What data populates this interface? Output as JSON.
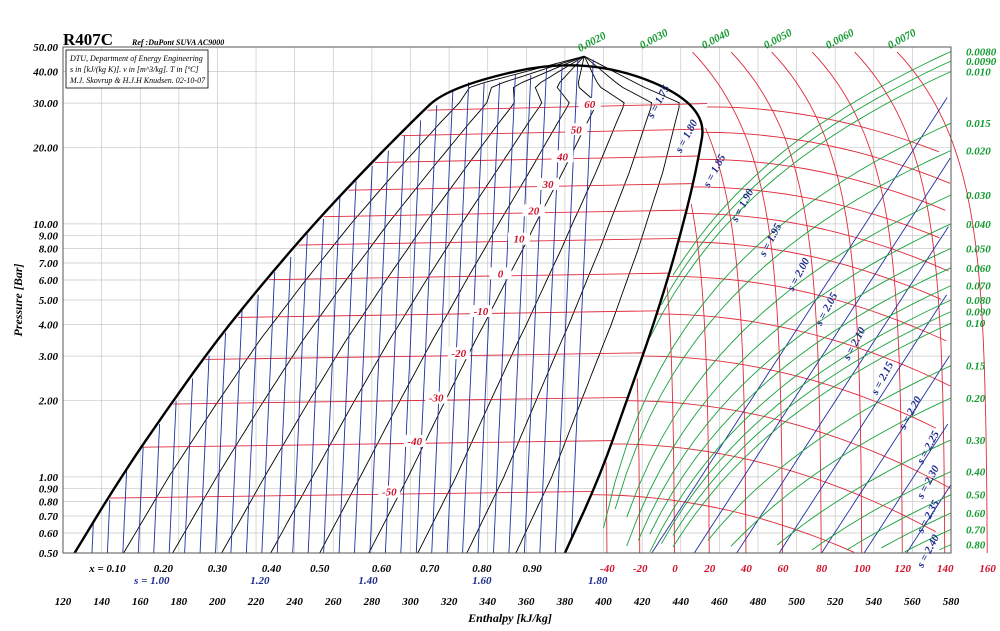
{
  "chart_data": {
    "type": "line",
    "title": "R407C",
    "subtitle": "Ref :DuPont SUVA AC9000",
    "info_lines": [
      "DTU, Department of Energy Engineering",
      "s in [kJ/(kg K)]. v in [m^3/kg]. T in [ºC]",
      "M.J. Skovrup & H.J.H Knudsen. 02-10-07"
    ],
    "xlabel": "Enthalpy [kJ/kg]",
    "ylabel": "Pressure [Bar]",
    "xlim": [
      120,
      580
    ],
    "ylim": [
      0.5,
      50
    ],
    "y_scale": "log",
    "grid": true,
    "x_ticks": [
      120,
      140,
      160,
      180,
      200,
      220,
      240,
      260,
      280,
      300,
      320,
      340,
      360,
      380,
      400,
      420,
      440,
      460,
      480,
      500,
      520,
      540,
      560,
      580
    ],
    "x_tick_labels": [
      "120",
      "140",
      "160",
      "180",
      "200",
      "220",
      "240",
      "260",
      "280",
      "300",
      "320",
      "340",
      "360",
      "380",
      "400",
      "420",
      "440",
      "460",
      "480",
      "500",
      "520",
      "540",
      "560",
      "580"
    ],
    "y_ticks": [
      0.5,
      0.6,
      0.7,
      0.8,
      0.9,
      1.0,
      2.0,
      3.0,
      4.0,
      5.0,
      6.0,
      7.0,
      8.0,
      9.0,
      10.0,
      20.0,
      30.0,
      40.0,
      50.0
    ],
    "y_tick_labels": [
      "0.50",
      "0.60",
      "0.70",
      "0.80",
      "0.90",
      "1.00",
      "2.00",
      "3.00",
      "4.00",
      "5.00",
      "6.00",
      "7.00",
      "8.00",
      "9.00",
      "10.00",
      "20.00",
      "30.00",
      "40.00",
      "50.00"
    ],
    "saturation_liquid": {
      "h": [
        126,
        150,
        175,
        200,
        225,
        250,
        275,
        300,
        320
      ],
      "p": [
        0.5,
        1.0,
        1.9,
        3.5,
        6.0,
        10.0,
        16.0,
        25.0,
        35.0
      ]
    },
    "critical_point": {
      "h": 390,
      "p": 46
    },
    "saturation_vapor": {
      "h": [
        380,
        398,
        412,
        426,
        438,
        448,
        454
      ],
      "p": [
        0.5,
        1.0,
        2.0,
        4.0,
        8.0,
        16.0,
        30.0
      ]
    },
    "quality_labels": [
      "x = 0.10",
      "0.20",
      "0.30",
      "0.40",
      "0.50",
      "0.60",
      "0.70",
      "0.80",
      "0.90"
    ],
    "quality_label_h": [
      143,
      172,
      200,
      228,
      253,
      285,
      310,
      337,
      363
    ],
    "entropy_bottom_labels": [
      "s = 1.00",
      "1.20",
      "1.40",
      "1.60",
      "1.80"
    ],
    "entropy_bottom_h": [
      166,
      222,
      278,
      337,
      397
    ],
    "temperature_bottom_labels": [
      "-40",
      "-20",
      "0",
      "20",
      "40",
      "60",
      "80",
      "100",
      "120",
      "140",
      "160"
    ],
    "temperature_bottom_h": [
      402,
      419,
      437,
      455,
      474,
      493,
      513,
      534,
      555,
      577,
      599
    ],
    "isotherms_inside": [
      {
        "label": "60",
        "p": 29.0
      },
      {
        "label": "50",
        "p": 23.0
      },
      {
        "label": "40",
        "p": 18.0
      },
      {
        "label": "30",
        "p": 14.0
      },
      {
        "label": "20",
        "p": 11.0
      },
      {
        "label": "10",
        "p": 8.5
      },
      {
        "label": "0",
        "p": 6.2
      },
      {
        "label": "-10",
        "p": 4.4
      },
      {
        "label": "-20",
        "p": 3.0
      },
      {
        "label": "-30",
        "p": 2.0
      },
      {
        "label": "-40",
        "p": 1.35
      },
      {
        "label": "-50",
        "p": 0.85
      }
    ],
    "isentropes_labels": [
      "s = 1.75",
      "s = 1.80",
      "s = 1.85",
      "s = 1.90",
      "s = 1.95",
      "s = 2.00",
      "s = 2.05",
      "s = 2.10",
      "s = 2.15",
      "s = 2.20",
      "s = 2.25",
      "s = 2.30",
      "s = 2.35",
      "s = 2.40"
    ],
    "isochore_labels_top": [
      "0.0020",
      "0.0030",
      "0.0040",
      "0.0050",
      "0.0060",
      "0.0070"
    ],
    "isochore_labels_right": [
      "0.0080",
      "0.0090",
      "0.010",
      "0.015",
      "0.020",
      "0.030",
      "0.040",
      "0.050",
      "0.060",
      "0.070",
      "0.080",
      "0.090",
      "0.10",
      "0.15",
      "0.20",
      "0.30",
      "0.40",
      "0.50",
      "0.60",
      "0.70",
      "0.80"
    ],
    "isochore_right_p": [
      48,
      44,
      40,
      25,
      19.5,
      13,
      10,
      8,
      6.7,
      5.7,
      5.0,
      4.5,
      4.05,
      2.75,
      2.05,
      1.4,
      1.05,
      0.85,
      0.72,
      0.62,
      0.54
    ]
  }
}
